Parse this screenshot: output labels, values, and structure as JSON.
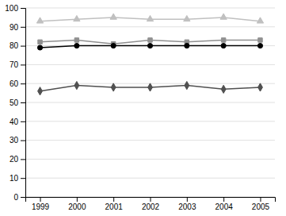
{
  "chart_data": {
    "type": "line",
    "x": [
      1999,
      2000,
      2001,
      2002,
      2003,
      2004,
      2005
    ],
    "series": [
      {
        "color": "#c0c0c0",
        "marker": "triangle",
        "line_style": "solid",
        "values": [
          93,
          94,
          95,
          94,
          94,
          95,
          93
        ]
      },
      {
        "color": "#909090",
        "marker": "square",
        "line_style": "solid",
        "values": [
          82,
          83,
          81,
          83,
          82,
          83,
          83
        ]
      },
      {
        "color": "#000000",
        "marker": "circle",
        "line_style": "solid",
        "values": [
          79,
          80,
          80,
          80,
          80,
          80,
          80
        ]
      },
      {
        "color": "#505050",
        "marker": "diamond",
        "line_style": "solid",
        "values": [
          56,
          59,
          58,
          58,
          59,
          57,
          58
        ]
      }
    ],
    "xlim": [
      1998.6,
      2005.4
    ],
    "xticks": [
      1999,
      2000,
      2001,
      2002,
      2003,
      2004,
      2005
    ],
    "ylim": [
      0,
      100
    ],
    "yticks": [
      0,
      10,
      20,
      30,
      40,
      50,
      60,
      70,
      80,
      90,
      100
    ],
    "grid": true
  }
}
